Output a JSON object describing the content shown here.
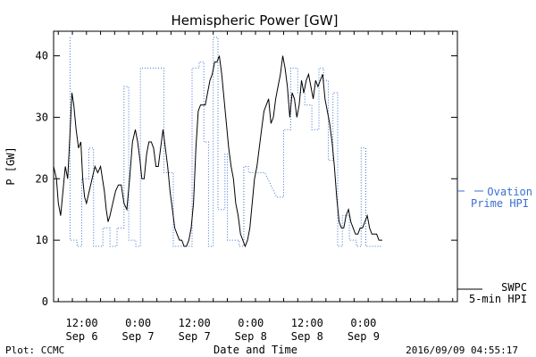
{
  "chart_data": {
    "type": "line",
    "title": "Hemispheric Power [GW]",
    "ylabel": "P [GW]",
    "xlabel": "Date and Time",
    "ylim": [
      0,
      44
    ],
    "yticks": [
      0,
      10,
      20,
      30,
      40
    ],
    "xlim_hours": [
      0,
      86
    ],
    "x_unit": "hours since 2016-09-05 06:00",
    "xticks": [
      {
        "h": 6,
        "time": "12:00",
        "date": "Sep 6"
      },
      {
        "h": 18,
        "time": "0:00",
        "date": "Sep 7"
      },
      {
        "h": 30,
        "time": "12:00",
        "date": "Sep 7"
      },
      {
        "h": 42,
        "time": "0:00",
        "date": "Sep 8"
      },
      {
        "h": 54,
        "time": "12:00",
        "date": "Sep 8"
      },
      {
        "h": 66,
        "time": "0:00",
        "date": "Sep 9"
      }
    ],
    "series": [
      {
        "name_line1": "SWPC",
        "name_line2": "5-min HPI",
        "color": "#000000",
        "style": "solid",
        "points": [
          [
            0,
            22
          ],
          [
            0.6,
            20
          ],
          [
            1.0,
            16
          ],
          [
            1.5,
            14
          ],
          [
            2.0,
            18
          ],
          [
            2.5,
            22
          ],
          [
            3.0,
            20
          ],
          [
            3.4,
            26
          ],
          [
            3.9,
            34
          ],
          [
            4.3,
            32
          ],
          [
            4.8,
            28
          ],
          [
            5.3,
            25
          ],
          [
            5.8,
            26
          ],
          [
            6.2,
            20
          ],
          [
            6.6,
            17
          ],
          [
            7.0,
            16
          ],
          [
            7.6,
            18
          ],
          [
            8.2,
            20
          ],
          [
            8.8,
            22
          ],
          [
            9.4,
            21
          ],
          [
            10.0,
            22
          ],
          [
            10.4,
            20
          ],
          [
            10.8,
            18
          ],
          [
            11.2,
            15
          ],
          [
            11.6,
            13
          ],
          [
            12.0,
            14
          ],
          [
            12.6,
            16
          ],
          [
            13.2,
            18
          ],
          [
            13.8,
            19
          ],
          [
            14.4,
            19
          ],
          [
            15.0,
            16
          ],
          [
            15.6,
            15
          ],
          [
            16.2,
            20
          ],
          [
            16.8,
            26
          ],
          [
            17.4,
            28
          ],
          [
            17.9,
            26
          ],
          [
            18.4,
            23
          ],
          [
            18.8,
            20
          ],
          [
            19.3,
            20
          ],
          [
            19.8,
            24
          ],
          [
            20.3,
            26
          ],
          [
            20.8,
            26
          ],
          [
            21.3,
            25
          ],
          [
            21.8,
            22
          ],
          [
            22.3,
            22
          ],
          [
            22.8,
            25
          ],
          [
            23.3,
            28
          ],
          [
            23.8,
            25
          ],
          [
            24.3,
            22
          ],
          [
            24.8,
            18
          ],
          [
            25.3,
            15
          ],
          [
            25.8,
            12
          ],
          [
            26.3,
            11
          ],
          [
            26.8,
            10
          ],
          [
            27.3,
            10
          ],
          [
            27.8,
            9
          ],
          [
            28.3,
            9
          ],
          [
            28.8,
            10
          ],
          [
            29.3,
            12
          ],
          [
            29.8,
            16
          ],
          [
            30.3,
            25
          ],
          [
            30.8,
            31
          ],
          [
            31.3,
            32
          ],
          [
            31.8,
            32
          ],
          [
            32.3,
            32
          ],
          [
            32.8,
            34
          ],
          [
            33.3,
            36
          ],
          [
            33.8,
            37
          ],
          [
            34.3,
            39
          ],
          [
            34.8,
            39
          ],
          [
            35.3,
            40
          ],
          [
            35.8,
            37
          ],
          [
            36.3,
            33
          ],
          [
            36.8,
            29
          ],
          [
            37.3,
            25
          ],
          [
            37.8,
            22
          ],
          [
            38.3,
            20
          ],
          [
            38.8,
            16
          ],
          [
            39.3,
            14
          ],
          [
            39.8,
            11
          ],
          [
            40.3,
            10
          ],
          [
            40.8,
            9
          ],
          [
            41.3,
            10
          ],
          [
            41.8,
            12
          ],
          [
            42.3,
            16
          ],
          [
            42.8,
            20
          ],
          [
            43.3,
            22
          ],
          [
            43.8,
            25
          ],
          [
            44.3,
            28
          ],
          [
            44.8,
            31
          ],
          [
            45.3,
            32
          ],
          [
            45.8,
            33
          ],
          [
            46.3,
            29
          ],
          [
            46.8,
            30
          ],
          [
            47.3,
            33
          ],
          [
            47.8,
            35
          ],
          [
            48.3,
            37
          ],
          [
            48.8,
            40
          ],
          [
            49.3,
            38
          ],
          [
            49.8,
            35
          ],
          [
            50.3,
            30
          ],
          [
            50.8,
            34
          ],
          [
            51.3,
            33
          ],
          [
            51.8,
            30
          ],
          [
            52.3,
            32
          ],
          [
            52.8,
            36
          ],
          [
            53.3,
            34
          ],
          [
            53.8,
            36
          ],
          [
            54.3,
            37
          ],
          [
            54.8,
            35
          ],
          [
            55.3,
            33
          ],
          [
            55.8,
            36
          ],
          [
            56.3,
            35
          ],
          [
            56.8,
            36
          ],
          [
            57.3,
            37
          ],
          [
            57.8,
            33
          ],
          [
            58.3,
            31
          ],
          [
            58.8,
            29
          ],
          [
            59.3,
            26
          ],
          [
            59.8,
            22
          ],
          [
            60.3,
            17
          ],
          [
            60.8,
            13
          ],
          [
            61.3,
            12
          ],
          [
            61.8,
            12
          ],
          [
            62.3,
            14
          ],
          [
            62.8,
            15
          ],
          [
            63.3,
            13
          ],
          [
            63.8,
            12
          ],
          [
            64.3,
            11
          ],
          [
            64.8,
            11
          ],
          [
            65.3,
            12
          ],
          [
            65.8,
            12
          ],
          [
            66.3,
            13
          ],
          [
            66.8,
            14
          ],
          [
            67.3,
            12
          ],
          [
            67.8,
            11
          ],
          [
            68.3,
            11
          ],
          [
            68.8,
            11
          ],
          [
            69.3,
            10
          ],
          [
            70.0,
            10
          ]
        ]
      },
      {
        "name_line1": "Ovation",
        "name_line2": "Prime HPI",
        "color": "#3a6fd0",
        "style": "dotted",
        "points": [
          [
            3.5,
            43
          ],
          [
            3.5,
            10
          ],
          [
            5.0,
            10
          ],
          [
            5.0,
            9
          ],
          [
            6.0,
            9
          ],
          [
            6.0,
            20
          ],
          [
            7.5,
            20
          ],
          [
            7.5,
            25
          ],
          [
            8.5,
            25
          ],
          [
            8.5,
            9
          ],
          [
            10.5,
            9
          ],
          [
            10.5,
            12
          ],
          [
            12.0,
            12
          ],
          [
            12.0,
            9
          ],
          [
            13.5,
            9
          ],
          [
            13.5,
            12
          ],
          [
            15.0,
            12
          ],
          [
            15.0,
            35
          ],
          [
            16.0,
            35
          ],
          [
            16.0,
            10
          ],
          [
            17.5,
            10
          ],
          [
            17.5,
            9
          ],
          [
            18.5,
            9
          ],
          [
            18.5,
            38
          ],
          [
            23.5,
            38
          ],
          [
            23.5,
            21
          ],
          [
            25.5,
            21
          ],
          [
            25.5,
            9
          ],
          [
            29.5,
            9
          ],
          [
            29.5,
            38
          ],
          [
            31.0,
            38
          ],
          [
            31.0,
            39
          ],
          [
            32.0,
            39
          ],
          [
            32.0,
            26
          ],
          [
            33.0,
            26
          ],
          [
            33.0,
            9
          ],
          [
            34.0,
            9
          ],
          [
            34.0,
            43
          ],
          [
            35.0,
            43
          ],
          [
            35.0,
            15
          ],
          [
            36.5,
            15
          ],
          [
            36.5,
            24
          ],
          [
            37.0,
            24
          ],
          [
            37.0,
            10
          ],
          [
            39.5,
            10
          ],
          [
            39.5,
            9
          ],
          [
            40.5,
            9
          ],
          [
            40.5,
            22
          ],
          [
            41.5,
            22
          ],
          [
            41.5,
            21
          ],
          [
            45.0,
            21
          ],
          [
            47.5,
            17
          ],
          [
            49.0,
            17
          ],
          [
            49.0,
            28
          ],
          [
            50.5,
            28
          ],
          [
            50.5,
            38
          ],
          [
            52.0,
            38
          ],
          [
            52.0,
            34
          ],
          [
            53.5,
            34
          ],
          [
            53.5,
            32
          ],
          [
            55.0,
            32
          ],
          [
            55.0,
            28
          ],
          [
            56.5,
            28
          ],
          [
            56.5,
            38
          ],
          [
            57.5,
            38
          ],
          [
            57.5,
            36
          ],
          [
            58.5,
            36
          ],
          [
            58.5,
            23
          ],
          [
            59.5,
            23
          ],
          [
            59.5,
            34
          ],
          [
            60.5,
            34
          ],
          [
            60.5,
            9
          ],
          [
            61.5,
            9
          ],
          [
            61.5,
            14
          ],
          [
            63.0,
            14
          ],
          [
            63.0,
            10
          ],
          [
            64.5,
            10
          ],
          [
            64.5,
            9
          ],
          [
            65.5,
            9
          ],
          [
            65.5,
            25
          ],
          [
            66.5,
            25
          ],
          [
            66.5,
            9
          ],
          [
            70.0,
            9
          ]
        ]
      }
    ]
  },
  "footer": {
    "left": "Plot: CCMC",
    "right": "2016/09/09 04:55:17"
  }
}
